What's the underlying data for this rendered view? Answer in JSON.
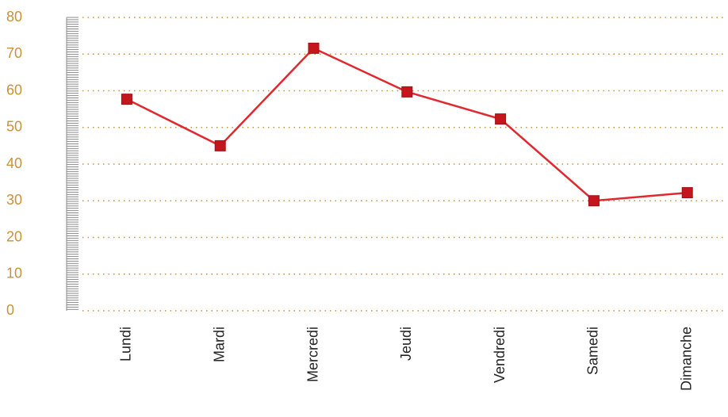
{
  "chart_data": {
    "type": "line",
    "categories": [
      "Lundi",
      "Mardi",
      "Mercredi",
      "Jeudi",
      "Vendredi",
      "Samedi",
      "Dimanche"
    ],
    "series": [
      {
        "color": "#e0292f",
        "values": [
          57.7,
          45,
          71.6,
          59.7,
          52.3,
          30,
          32.2
        ]
      }
    ],
    "ylim": [
      0,
      80
    ],
    "yticks": [
      0,
      10,
      20,
      30,
      40,
      50,
      60,
      70,
      80
    ],
    "grid": true
  }
}
